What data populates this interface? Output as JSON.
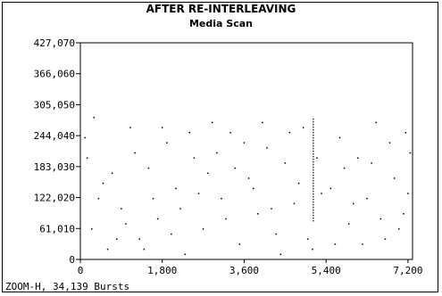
{
  "chart_data": {
    "type": "scatter",
    "title": "AFTER RE-INTERLEAVING",
    "subtitle": "Media Scan",
    "xlabel": "",
    "ylabel": "",
    "xlim": [
      0,
      7300
    ],
    "ylim": [
      0,
      427070
    ],
    "x_ticks": [
      0,
      1800,
      3600,
      5400,
      7200
    ],
    "x_tick_labels": [
      "0",
      "1,800",
      "3,600",
      "5,400",
      "7,200"
    ],
    "y_ticks": [
      0,
      61010,
      122020,
      183030,
      244040,
      305050,
      366060,
      427070
    ],
    "y_tick_labels": [
      "0",
      "61,010",
      "122,020",
      "183,030",
      "244,040",
      "305,050",
      "366,060",
      "427,070"
    ],
    "grid": false,
    "series": [
      {
        "points": [
          [
            100,
            240000
          ],
          [
            250,
            60000
          ],
          [
            400,
            120000
          ],
          [
            600,
            20000
          ],
          [
            700,
            170000
          ],
          [
            900,
            100000
          ],
          [
            1100,
            260000
          ],
          [
            1300,
            40000
          ],
          [
            1500,
            180000
          ],
          [
            1700,
            80000
          ],
          [
            1900,
            230000
          ],
          [
            2100,
            140000
          ],
          [
            2300,
            10000
          ],
          [
            2500,
            200000
          ],
          [
            2700,
            60000
          ],
          [
            2900,
            270000
          ],
          [
            3100,
            120000
          ],
          [
            3300,
            250000
          ],
          [
            3500,
            30000
          ],
          [
            3700,
            160000
          ],
          [
            3900,
            90000
          ],
          [
            4100,
            220000
          ],
          [
            4300,
            50000
          ],
          [
            4500,
            190000
          ],
          [
            4700,
            110000
          ],
          [
            4900,
            260000
          ],
          [
            5100,
            20000
          ],
          [
            5500,
            140000
          ],
          [
            5700,
            240000
          ],
          [
            5900,
            70000
          ],
          [
            6100,
            200000
          ],
          [
            6300,
            120000
          ],
          [
            6500,
            270000
          ],
          [
            6700,
            40000
          ],
          [
            6900,
            160000
          ],
          [
            7100,
            90000
          ],
          [
            7250,
            210000
          ],
          [
            300,
            280000
          ],
          [
            800,
            40000
          ],
          [
            1600,
            120000
          ],
          [
            2400,
            250000
          ],
          [
            3200,
            80000
          ],
          [
            4000,
            270000
          ],
          [
            4800,
            150000
          ],
          [
            5600,
            30000
          ],
          [
            6400,
            190000
          ],
          [
            7000,
            60000
          ],
          [
            1200,
            210000
          ],
          [
            2000,
            50000
          ],
          [
            2800,
            170000
          ],
          [
            3600,
            230000
          ],
          [
            4400,
            10000
          ],
          [
            5200,
            200000
          ],
          [
            6000,
            110000
          ],
          [
            6800,
            230000
          ],
          [
            500,
            150000
          ],
          [
            1400,
            20000
          ],
          [
            2200,
            100000
          ],
          [
            3000,
            210000
          ],
          [
            3800,
            140000
          ],
          [
            4600,
            250000
          ],
          [
            5300,
            130000
          ],
          [
            6200,
            30000
          ],
          [
            7200,
            130000
          ],
          [
            150,
            200000
          ],
          [
            1000,
            70000
          ],
          [
            1800,
            260000
          ],
          [
            2600,
            130000
          ],
          [
            3400,
            180000
          ],
          [
            4200,
            100000
          ],
          [
            5000,
            40000
          ],
          [
            5800,
            180000
          ],
          [
            6600,
            80000
          ],
          [
            7150,
            250000
          ]
        ]
      },
      {
        "type": "line",
        "points": [
          [
            5120,
            75000
          ],
          [
            5120,
            280000
          ]
        ]
      }
    ]
  },
  "footer": {
    "text": "ZOOM-H, 34,139 Bursts"
  }
}
